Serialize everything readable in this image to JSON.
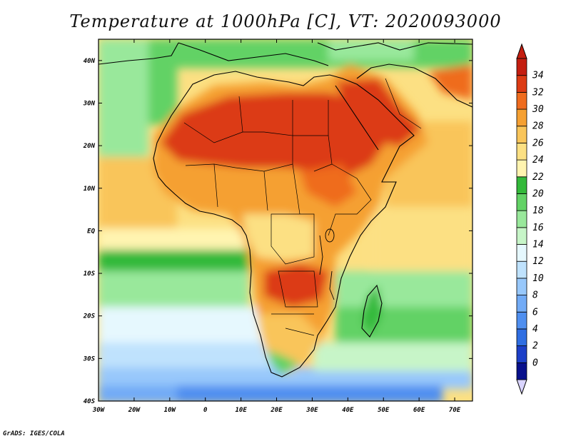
{
  "title": "Temperature at 1000hPa [C], VT: 2020093000",
  "footer": "GrADS: IGES/COLA",
  "map": {
    "lon_range": [
      -30,
      75
    ],
    "lat_range": [
      -40,
      45
    ],
    "lon_ticks": [
      "30W",
      "20W",
      "10W",
      "0",
      "10E",
      "20E",
      "30E",
      "40E",
      "50E",
      "60E",
      "70E"
    ],
    "lat_ticks": [
      "40S",
      "30S",
      "20S",
      "10S",
      "EQ",
      "10N",
      "20N",
      "30N",
      "40N"
    ]
  },
  "colorbar": {
    "labels": [
      "0",
      "2",
      "4",
      "6",
      "8",
      "10",
      "12",
      "14",
      "16",
      "18",
      "20",
      "22",
      "24",
      "26",
      "28",
      "30",
      "32",
      "34"
    ],
    "colors": [
      "#08108c",
      "#1c3fc8",
      "#2f6ee2",
      "#4f8ff0",
      "#72abf6",
      "#98c8fb",
      "#bfe2fd",
      "#e6f8fe",
      "#c7f5c8",
      "#99e89b",
      "#62d265",
      "#33b93a",
      "#fff4b0",
      "#fce083",
      "#f9c55a",
      "#f5a032",
      "#ef6c1e",
      "#dc3b14",
      "#c41e10"
    ],
    "under_color": "#d9d4ff",
    "over_color": "#c41e10"
  }
}
